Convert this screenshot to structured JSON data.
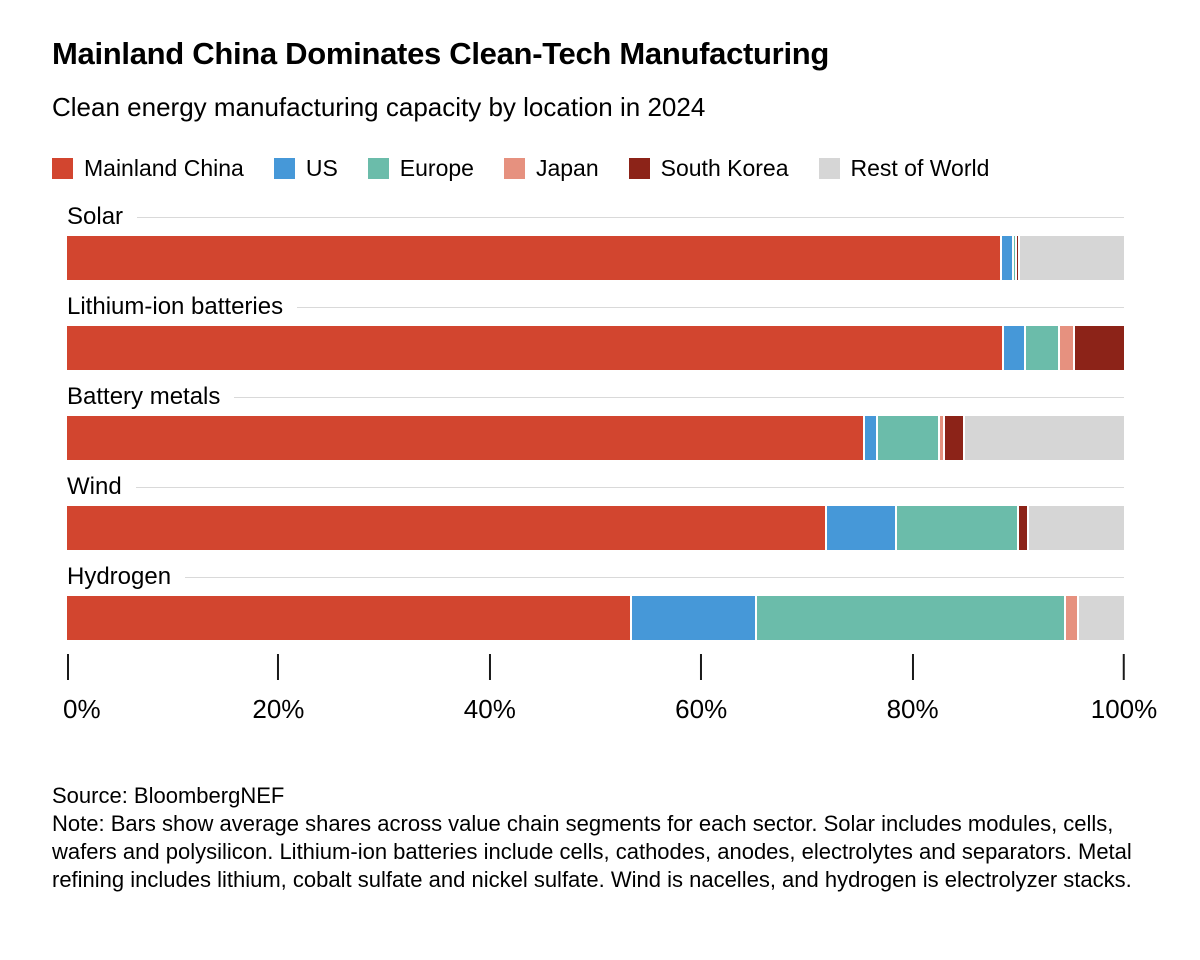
{
  "header": {
    "title": "Mainland China Dominates Clean-Tech Manufacturing",
    "subtitle": "Clean energy manufacturing capacity by location in 2024"
  },
  "colors": {
    "mainland_china": "#d2452f",
    "us": "#4698d8",
    "europe": "#6bbcaa",
    "japan": "#e6917f",
    "south_korea": "#8c2318",
    "rest_of_world": "#d6d6d6",
    "row_rule": "#d9d9d9",
    "tick": "#1a1a1a",
    "text": "#000000",
    "background": "#ffffff"
  },
  "chart_data": {
    "type": "bar",
    "orientation": "horizontal",
    "stacked": true,
    "unit": "%",
    "title": "Mainland China Dominates Clean-Tech Manufacturing",
    "subtitle": "Clean energy manufacturing capacity by location in 2024",
    "categories": [
      "Solar",
      "Lithium-ion batteries",
      "Battery metals",
      "Wind",
      "Hydrogen"
    ],
    "series": [
      {
        "name": "Mainland China",
        "color": "#d2452f",
        "values": [
          88.3,
          88.5,
          75.3,
          71.7,
          53.3
        ]
      },
      {
        "name": "US",
        "color": "#4698d8",
        "values": [
          1.1,
          2.0,
          1.2,
          6.6,
          11.8
        ]
      },
      {
        "name": "Europe",
        "color": "#6bbcaa",
        "values": [
          0.3,
          3.3,
          5.9,
          11.6,
          29.2
        ]
      },
      {
        "name": "Japan",
        "color": "#e6917f",
        "values": [
          0,
          1.4,
          0.5,
          0,
          1.3
        ]
      },
      {
        "name": "South Korea",
        "color": "#8c2318",
        "values": [
          0.3,
          4.8,
          1.9,
          0.9,
          0
        ]
      },
      {
        "name": "Rest of World",
        "color": "#d6d6d6",
        "values": [
          10.0,
          0,
          15.2,
          9.2,
          4.4
        ]
      }
    ],
    "x_axis": {
      "range": [
        0,
        100
      ],
      "ticks": [
        {
          "value": 0,
          "label": "0%"
        },
        {
          "value": 20,
          "label": "20%"
        },
        {
          "value": 40,
          "label": "40%"
        },
        {
          "value": 60,
          "label": "60%"
        },
        {
          "value": 80,
          "label": "80%"
        },
        {
          "value": 100,
          "label": "100%"
        }
      ]
    },
    "legend_position": "top",
    "grid": false
  },
  "footer": {
    "source": "Source: BloombergNEF",
    "note": "Note: Bars show average shares across value chain segments for each sector. Solar includes modules, cells, wafers and polysilicon. Lithium-ion batteries include cells, cathodes, anodes, electrolytes and separators. Metal refining includes lithium, cobalt sulfate and nickel sulfate. Wind is nacelles, and hydrogen is electrolyzer stacks."
  }
}
